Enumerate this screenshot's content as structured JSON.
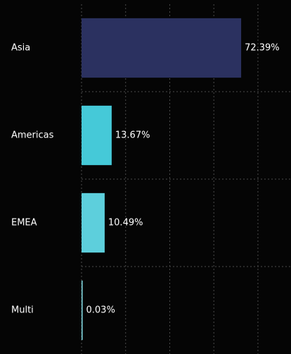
{
  "chart_data": {
    "type": "barh",
    "categories": [
      "Asia",
      "Americas",
      "EMEA",
      "Multi"
    ],
    "values": [
      72.39,
      13.67,
      10.49,
      0.03
    ],
    "value_labels": [
      "72.39%",
      "13.67%",
      "10.49%",
      "0.03%"
    ],
    "colors": [
      "#2b3160",
      "#45c9d8",
      "#5dcfdc",
      "#86dfe8"
    ],
    "xlim": [
      0,
      95
    ],
    "xticks": [
      0,
      20,
      40,
      60,
      80
    ],
    "grid": true
  }
}
